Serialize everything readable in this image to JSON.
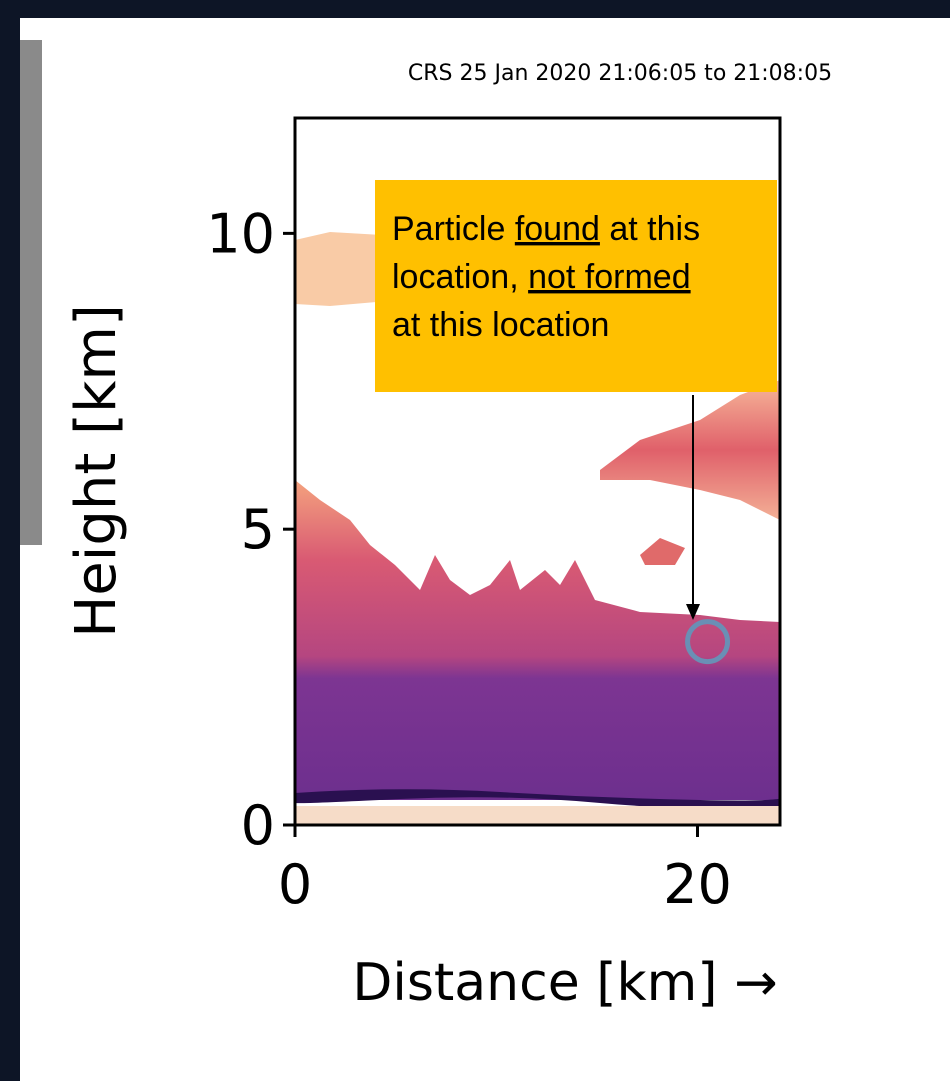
{
  "chart_data": {
    "type": "curtain",
    "title": "CRS 25 Jan 2020 21:06:05 to 21:08:05",
    "xlabel": "Distance [km] →",
    "ylabel": "Height [km]",
    "xlim": [
      0,
      24.1
    ],
    "xticks": [
      0,
      20
    ],
    "ylim": [
      0,
      11.95
    ],
    "yticks": [
      0,
      5,
      10
    ],
    "marker": {
      "x": 20.5,
      "y": 3.1,
      "color": "#6a8fb5"
    },
    "annotation": {
      "color": "#ffc000",
      "lines": [
        [
          "Particle ",
          {
            "text": "found",
            "underline": true
          },
          " at this"
        ],
        [
          "location, ",
          {
            "text": "not formed",
            "underline": true
          }
        ],
        [
          "at this location"
        ]
      ]
    }
  }
}
